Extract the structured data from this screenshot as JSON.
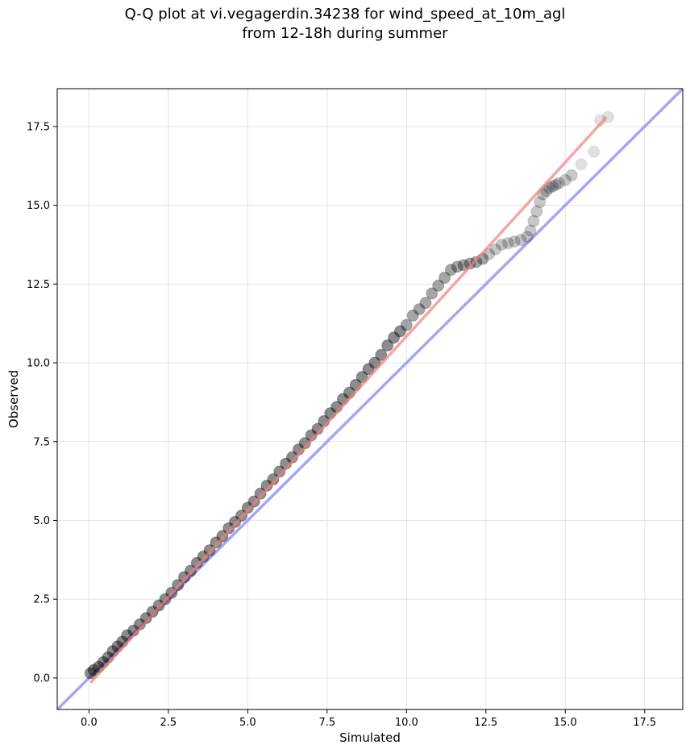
{
  "chart_data": {
    "type": "scatter",
    "title_lines": [
      "Q-Q plot at vi.vegagerdin.34238 for wind_speed_at_10m_agl",
      "from 12-18h during summer"
    ],
    "xlabel": "Simulated",
    "ylabel": "Observed",
    "xlim": [
      -1.0,
      18.7
    ],
    "ylim": [
      -1.0,
      18.7
    ],
    "xticks": [
      0.0,
      2.5,
      5.0,
      7.5,
      10.0,
      12.5,
      15.0,
      17.5
    ],
    "yticks": [
      0.0,
      2.5,
      5.0,
      7.5,
      10.0,
      12.5,
      15.0,
      17.5
    ],
    "xtick_labels": [
      "0.0",
      "2.5",
      "5.0",
      "7.5",
      "10.0",
      "12.5",
      "15.0",
      "17.5"
    ],
    "ytick_labels": [
      "0.0",
      "2.5",
      "5.0",
      "7.5",
      "10.0",
      "12.5",
      "15.0",
      "17.5"
    ],
    "grid": true,
    "point_color": "#000000",
    "identity_line_color": "#8888ee",
    "fit_line_color": "#f08080",
    "identity_line": {
      "x": [
        -1.0,
        18.7
      ],
      "y": [
        -1.0,
        18.7
      ]
    },
    "fit_line": {
      "x": [
        0.05,
        16.3
      ],
      "y": [
        -0.15,
        17.8
      ]
    },
    "points": {
      "x": [
        0.05,
        0.15,
        0.3,
        0.45,
        0.6,
        0.75,
        0.9,
        1.05,
        1.2,
        1.4,
        1.6,
        1.8,
        2.0,
        2.2,
        2.4,
        2.6,
        2.8,
        3.0,
        3.2,
        3.4,
        3.6,
        3.8,
        4.0,
        4.2,
        4.4,
        4.6,
        4.8,
        5.0,
        5.2,
        5.4,
        5.6,
        5.8,
        6.0,
        6.2,
        6.4,
        6.6,
        6.8,
        7.0,
        7.2,
        7.4,
        7.6,
        7.8,
        8.0,
        8.2,
        8.4,
        8.6,
        8.8,
        9.0,
        9.2,
        9.4,
        9.6,
        9.8,
        10.0,
        10.2,
        10.4,
        10.6,
        10.8,
        11.0,
        11.2,
        11.4,
        11.6,
        11.8,
        12.0,
        12.2,
        12.4,
        12.6,
        12.8,
        13.0,
        13.2,
        13.4,
        13.6,
        13.8,
        13.9,
        14.0,
        14.1,
        14.2,
        14.3,
        14.4,
        14.5,
        14.6,
        14.7,
        14.8,
        15.0,
        15.2,
        15.5,
        15.9,
        16.1,
        16.35
      ],
      "y": [
        0.15,
        0.25,
        0.35,
        0.5,
        0.65,
        0.85,
        1.0,
        1.15,
        1.35,
        1.5,
        1.7,
        1.9,
        2.1,
        2.3,
        2.5,
        2.7,
        2.95,
        3.2,
        3.4,
        3.65,
        3.85,
        4.05,
        4.3,
        4.5,
        4.75,
        4.95,
        5.15,
        5.4,
        5.6,
        5.85,
        6.1,
        6.3,
        6.55,
        6.8,
        7.0,
        7.25,
        7.45,
        7.7,
        7.9,
        8.15,
        8.4,
        8.6,
        8.85,
        9.05,
        9.3,
        9.55,
        9.8,
        10.0,
        10.25,
        10.55,
        10.8,
        11.0,
        11.2,
        11.5,
        11.7,
        11.9,
        12.2,
        12.45,
        12.7,
        12.95,
        13.05,
        13.1,
        13.15,
        13.2,
        13.3,
        13.45,
        13.6,
        13.75,
        13.8,
        13.85,
        13.9,
        14.0,
        14.2,
        14.5,
        14.8,
        15.1,
        15.35,
        15.45,
        15.55,
        15.6,
        15.65,
        15.7,
        15.8,
        15.95,
        16.3,
        16.7,
        17.7,
        17.8
      ]
    }
  }
}
